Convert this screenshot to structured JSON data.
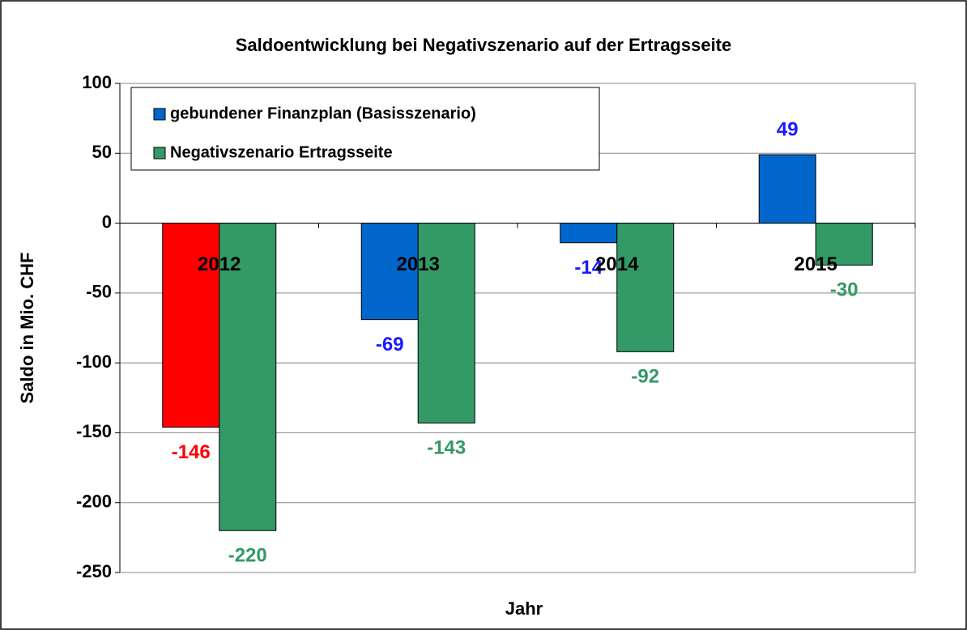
{
  "chart_data": {
    "type": "bar",
    "title": "Saldoentwicklung bei Negativszenario auf der Ertragsseite",
    "x_label": "Jahr",
    "y_label": "Saldo in Mio. CHF",
    "categories": [
      "2012",
      "2013",
      "2014",
      "2015"
    ],
    "series": [
      {
        "name": "gebundener Finanzplan (Basisszenario)",
        "color": "#0066cc",
        "point_colors": [
          "#ff0000",
          "#0066cc",
          "#0066cc",
          "#0066cc"
        ],
        "label_colors": [
          "#ff0000",
          "#1a1aff",
          "#1a1aff",
          "#1a1aff"
        ],
        "values": [
          -146,
          -69,
          -14,
          49
        ]
      },
      {
        "name": "Negativszenario Ertragsseite",
        "color": "#339966",
        "values": [
          -220,
          -143,
          -92,
          -30
        ]
      }
    ],
    "ylim": [
      -250,
      100
    ],
    "yticks": [
      -250,
      -200,
      -150,
      -100,
      -50,
      0,
      50,
      100
    ],
    "grid": true,
    "legend": "top-left"
  }
}
